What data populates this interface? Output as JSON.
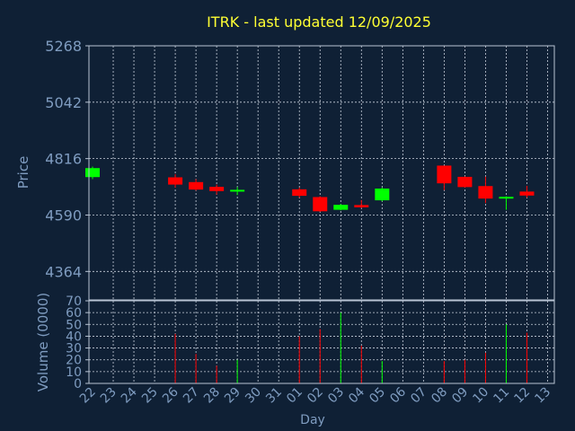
{
  "colors": {
    "background": "#0f2035",
    "panel": "#0f2035",
    "frame": "#b8c4d4",
    "grid": "#c8d0dc",
    "title": "#ffff33",
    "axis_text": "#7f9cc0",
    "up": "#00ff00",
    "down": "#ff0000"
  },
  "chart_data": {
    "type": "candlestick",
    "title": "ITRK - last updated 12/09/2025",
    "xlabel": "Day",
    "price_panel": {
      "ylabel": "Price",
      "ylim": [
        4250,
        5268
      ],
      "yticks": [
        5268,
        5042,
        4816,
        4590,
        4364
      ],
      "grid": true
    },
    "volume_panel": {
      "ylabel": "Volume (0000)",
      "ylim": [
        0,
        70
      ],
      "yticks": [
        0,
        10,
        20,
        30,
        40,
        50,
        60,
        70
      ],
      "grid": true
    },
    "x_tick_labels": [
      "22",
      "23",
      "24",
      "25",
      "26",
      "27",
      "28",
      "29",
      "30",
      "31",
      "01",
      "02",
      "03",
      "04",
      "05",
      "06",
      "07",
      "08",
      "09",
      "10",
      "11",
      "12",
      "13"
    ],
    "candles": [
      {
        "day": "22",
        "open": 4742,
        "close": 4778,
        "high": 4784,
        "low": 4734,
        "volume": 0
      },
      {
        "day": "26",
        "open": 4741,
        "close": 4712,
        "high": 4754,
        "low": 4700,
        "volume": 42
      },
      {
        "day": "27",
        "open": 4722,
        "close": 4692,
        "high": 4734,
        "low": 4688,
        "volume": 25
      },
      {
        "day": "28",
        "open": 4703,
        "close": 4686,
        "high": 4712,
        "low": 4672,
        "volume": 15
      },
      {
        "day": "29",
        "open": 4684,
        "close": 4691,
        "high": 4702,
        "low": 4670,
        "volume": 20
      },
      {
        "day": "01",
        "open": 4693,
        "close": 4667,
        "high": 4700,
        "low": 4660,
        "volume": 40
      },
      {
        "day": "02",
        "open": 4662,
        "close": 4605,
        "high": 4665,
        "low": 4603,
        "volume": 46
      },
      {
        "day": "03",
        "open": 4611,
        "close": 4631,
        "high": 4634,
        "low": 4609,
        "volume": 60
      },
      {
        "day": "04",
        "open": 4630,
        "close": 4621,
        "high": 4650,
        "low": 4618,
        "volume": 32
      },
      {
        "day": "05",
        "open": 4649,
        "close": 4696,
        "high": 4700,
        "low": 4645,
        "volume": 19
      },
      {
        "day": "08",
        "open": 4788,
        "close": 4717,
        "high": 4788,
        "low": 4690,
        "volume": 19
      },
      {
        "day": "09",
        "open": 4743,
        "close": 4702,
        "high": 4745,
        "low": 4700,
        "volume": 20
      },
      {
        "day": "10",
        "open": 4706,
        "close": 4656,
        "high": 4744,
        "low": 4638,
        "volume": 26
      },
      {
        "day": "11",
        "open": 4656,
        "close": 4663,
        "high": 4665,
        "low": 4611,
        "volume": 50
      },
      {
        "day": "12",
        "open": 4684,
        "close": 4668,
        "high": 4707,
        "low": 4660,
        "volume": 43
      }
    ]
  }
}
